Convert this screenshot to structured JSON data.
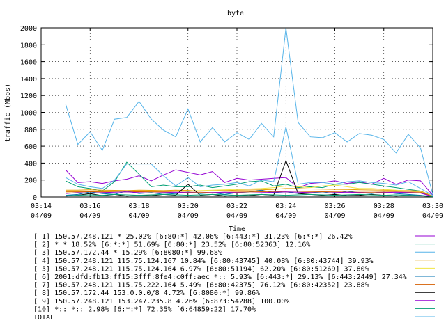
{
  "chart_data": {
    "type": "line",
    "title": "byte",
    "xlabel": "Time",
    "ylabel": "traffic (Mbps)",
    "ylim": [
      0,
      2000
    ],
    "yticks": [
      0,
      200,
      400,
      600,
      800,
      1000,
      1200,
      1400,
      1600,
      1800,
      2000
    ],
    "xlim": [
      0,
      16
    ],
    "xticks": [
      {
        "pos": 0,
        "time": "03:14",
        "date": "04/09"
      },
      {
        "pos": 2,
        "time": "03:16",
        "date": "04/09"
      },
      {
        "pos": 4,
        "time": "03:18",
        "date": "04/09"
      },
      {
        "pos": 6,
        "time": "03:20",
        "date": "04/09"
      },
      {
        "pos": 8,
        "time": "03:22",
        "date": "04/09"
      },
      {
        "pos": 10,
        "time": "03:24",
        "date": "04/09"
      },
      {
        "pos": 12,
        "time": "03:26",
        "date": "04/09"
      },
      {
        "pos": 14,
        "time": "03:28",
        "date": "04/09"
      },
      {
        "pos": 16,
        "time": "03:30",
        "date": "04/09"
      }
    ],
    "x": [
      1,
      1.5,
      2,
      2.5,
      3,
      3.5,
      4,
      4.5,
      5,
      5.5,
      6,
      6.5,
      7,
      7.5,
      8,
      8.5,
      9,
      9.5,
      10,
      10.5,
      11,
      11.5,
      12,
      12.5,
      13,
      13.5,
      14,
      14.5,
      15,
      15.5,
      16
    ],
    "series": [
      {
        "name": "[ 1] 150.57.248.121 * 25.02%  [6:80:*] 42.06% [6:443:*] 31.23% [6:*:*] 26.42%",
        "color": "#9400d3",
        "values": [
          320,
          170,
          180,
          160,
          190,
          210,
          250,
          190,
          260,
          320,
          290,
          260,
          300,
          170,
          220,
          200,
          210,
          220,
          230,
          110,
          160,
          170,
          190,
          160,
          180,
          150,
          220,
          150,
          200,
          190,
          20
        ]
      },
      {
        "name": "[ 2] * * 18.52%  [6:*:*] 51.69% [6:80:*] 23.52% [6:80:52363] 12.16%",
        "color": "#009e73",
        "values": [
          190,
          120,
          100,
          70,
          180,
          410,
          270,
          120,
          140,
          120,
          120,
          140,
          110,
          130,
          150,
          180,
          190,
          130,
          150,
          110,
          120,
          110,
          150,
          150,
          170,
          150,
          130,
          110,
          90,
          70,
          10
        ]
      },
      {
        "name": "[ 3] 150.57.172.44 * 15.29%  [6:8080:*] 99.68%",
        "color": "#56b4e9",
        "values": [
          1100,
          620,
          770,
          550,
          920,
          940,
          1130,
          920,
          790,
          710,
          1040,
          650,
          820,
          650,
          760,
          680,
          870,
          710,
          2000,
          880,
          710,
          700,
          760,
          650,
          750,
          730,
          680,
          520,
          740,
          580,
          30
        ]
      },
      {
        "name": "[ 4] 150.57.248.121 115.75.124.167 10.84%  [6:80:43745] 40.08% [6:80:43744] 39.93%",
        "color": "#e69f00",
        "values": [
          80,
          80,
          85,
          80,
          78,
          75,
          80,
          78,
          75,
          80,
          78,
          70,
          72,
          75,
          80,
          82,
          85,
          90,
          100,
          100,
          95,
          92,
          90,
          88,
          85,
          82,
          80,
          78,
          75,
          70,
          10
        ]
      },
      {
        "name": "[ 5] 150.57.248.121 115.75.124.164 6.97%  [6:80:51194] 62.20% [6:80:51269] 37.80%",
        "color": "#f0e442",
        "values": [
          60,
          62,
          60,
          65,
          62,
          60,
          62,
          65,
          68,
          70,
          72,
          75,
          80,
          85,
          90,
          95,
          100,
          110,
          130,
          120,
          110,
          130,
          140,
          120,
          100,
          100,
          90,
          80,
          70,
          60,
          5
        ]
      },
      {
        "name": "[ 6] 2001:dfd:fb13:ff15:3fff:8fe4:c0ff:aec *:: 5.93%  [6:443:*] 29.13% [6:443:2449] 27.34%",
        "color": "#0072b2",
        "values": [
          20,
          30,
          60,
          40,
          30,
          70,
          40,
          50,
          30,
          40,
          60,
          40,
          50,
          30,
          50,
          60,
          80,
          50,
          60,
          40,
          50,
          60,
          40,
          70,
          50,
          40,
          60,
          40,
          30,
          20,
          5
        ]
      },
      {
        "name": "[ 7] 150.57.248.121 115.75.222.164 5.49%  [6:80:42375] 76.12% [6:80:42352] 23.88%",
        "color": "#d55e00",
        "values": [
          60,
          60,
          62,
          60,
          58,
          60,
          62,
          60,
          60,
          58,
          55,
          55,
          52,
          55,
          58,
          60,
          62,
          65,
          60,
          58,
          60,
          62,
          60,
          58,
          55,
          55,
          58,
          60,
          58,
          55,
          5
        ]
      },
      {
        "name": "[ 8] 150.57.172.44 153.0.0.0/8 4.72%  [6:8080:*] 99.86%",
        "color": "#000000",
        "values": [
          10,
          20,
          40,
          15,
          30,
          10,
          20,
          15,
          30,
          20,
          150,
          20,
          30,
          10,
          20,
          15,
          30,
          20,
          430,
          40,
          30,
          20,
          30,
          15,
          20,
          30,
          20,
          10,
          20,
          15,
          5
        ]
      },
      {
        "name": "[ 9] 150.57.248.121 153.247.235.8 4.26%  [6:873:54288] 100.00%",
        "color": "#9400d3",
        "values": [
          40,
          50,
          45,
          50,
          55,
          60,
          50,
          45,
          50,
          55,
          50,
          45,
          50,
          55,
          50,
          45,
          50,
          55,
          60,
          55,
          50,
          45,
          50,
          55,
          50,
          45,
          50,
          55,
          50,
          45,
          5
        ]
      },
      {
        "name": "[10] *:: *:: 2.98%  [6:*:*] 72.35% [6:64859:22] 17.70%",
        "color": "#009e73",
        "values": [
          15,
          20,
          25,
          20,
          30,
          25,
          20,
          25,
          30,
          25,
          20,
          25,
          30,
          25,
          20,
          25,
          30,
          25,
          20,
          25,
          30,
          25,
          20,
          25,
          30,
          25,
          20,
          25,
          20,
          15,
          5
        ]
      },
      {
        "name": "TOTAL",
        "color": "#56b4e9",
        "values": [
          230,
          150,
          120,
          100,
          200,
          390,
          390,
          390,
          250,
          130,
          230,
          120,
          140,
          150,
          170,
          130,
          200,
          180,
          830,
          150,
          170,
          170,
          150,
          180,
          190,
          170,
          160,
          140,
          180,
          100,
          20
        ]
      }
    ]
  }
}
